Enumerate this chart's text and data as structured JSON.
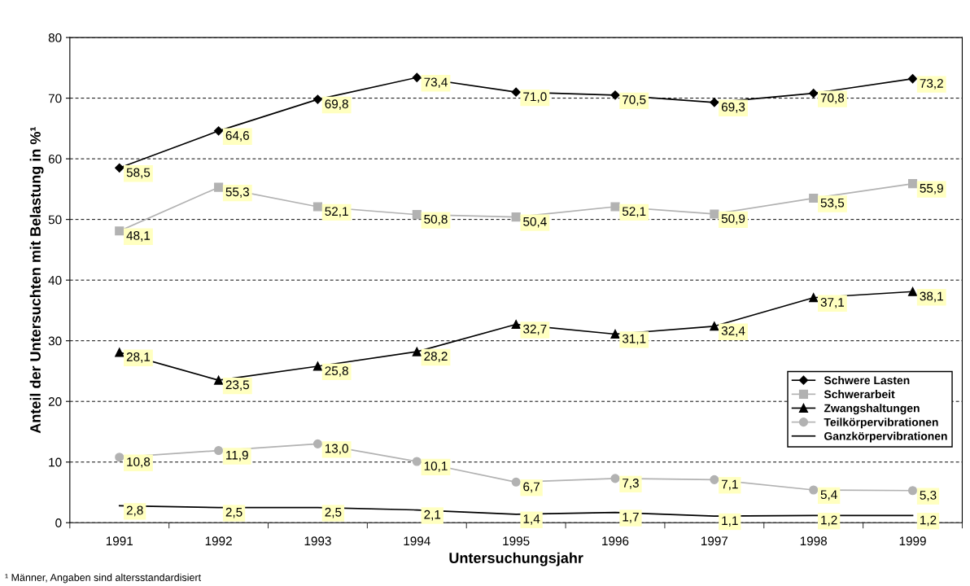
{
  "chart_data": {
    "type": "line",
    "xlabel": "Untersuchungsjahr",
    "ylabel": "Anteil der Untersuchten mit Belastung in %¹",
    "categories": [
      "1991",
      "1992",
      "1993",
      "1994",
      "1995",
      "1996",
      "1997",
      "1998",
      "1999"
    ],
    "series": [
      {
        "name": "Schwere Lasten",
        "color": "#000000",
        "marker": "diamond",
        "values": [
          58.5,
          64.6,
          69.8,
          73.4,
          71.0,
          70.5,
          69.3,
          70.8,
          73.2
        ],
        "value_labels": [
          "58,5",
          "64,6",
          "69,8",
          "73,4",
          "71,0",
          "70,5",
          "69,3",
          "70,8",
          "73,2"
        ]
      },
      {
        "name": "Schwerarbeit",
        "color": "#b2b2b2",
        "marker": "square",
        "values": [
          48.1,
          55.3,
          52.1,
          50.8,
          50.4,
          52.1,
          50.9,
          53.5,
          55.9
        ],
        "value_labels": [
          "48,1",
          "55,3",
          "52,1",
          "50,8",
          "50,4",
          "52,1",
          "50,9",
          "53,5",
          "55,9"
        ]
      },
      {
        "name": "Zwangshaltungen",
        "color": "#000000",
        "marker": "triangle",
        "values": [
          28.1,
          23.5,
          25.8,
          28.2,
          32.7,
          31.1,
          32.4,
          37.1,
          38.1
        ],
        "value_labels": [
          "28,1",
          "23,5",
          "25,8",
          "28,2",
          "32,7",
          "31,1",
          "32,4",
          "37,1",
          "38,1"
        ]
      },
      {
        "name": "Teilkörpervibrationen",
        "color": "#b2b2b2",
        "marker": "circle",
        "values": [
          10.8,
          11.9,
          13.0,
          10.1,
          6.7,
          7.3,
          7.1,
          5.4,
          5.3
        ],
        "value_labels": [
          "10,8",
          "11,9",
          "13,0",
          "10,1",
          "6,7",
          "7,3",
          "7,1",
          "5,4",
          "5,3"
        ]
      },
      {
        "name": "Ganzkörpervibrationen",
        "color": "#000000",
        "marker": "none",
        "values": [
          2.8,
          2.5,
          2.5,
          2.1,
          1.4,
          1.7,
          1.1,
          1.2,
          1.2
        ],
        "value_labels": [
          "2,8",
          "2,5",
          "2,5",
          "2,1",
          "1,4",
          "1,7",
          "1,1",
          "1,2",
          "1,2"
        ]
      }
    ],
    "ylim": [
      0,
      80
    ],
    "yticks": [
      0,
      10,
      20,
      30,
      40,
      50,
      60,
      70,
      80
    ],
    "grid": "y",
    "legend": "right",
    "line_style": "solid",
    "annotations": [
      "¹ Männer, Angaben sind altersstandardisiert"
    ]
  }
}
